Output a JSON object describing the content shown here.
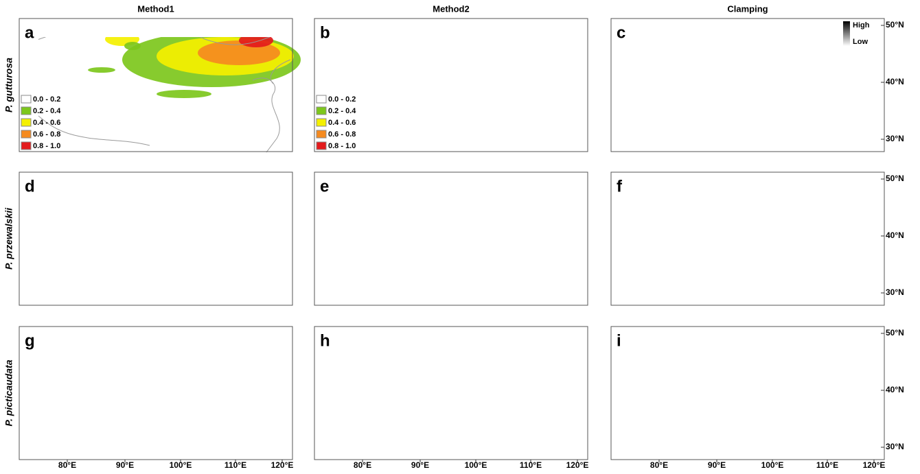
{
  "columns": [
    "Method1",
    "Method2",
    "Clamping"
  ],
  "rows": [
    {
      "label": "P. gutturosa",
      "panels": [
        "a",
        "b",
        "c"
      ]
    },
    {
      "label": "P. przewalskii",
      "panels": [
        "d",
        "e",
        "f"
      ]
    },
    {
      "label": "P. picticaudata",
      "panels": [
        "g",
        "h",
        "i"
      ]
    }
  ],
  "legend": [
    {
      "label": "0.0 - 0.2",
      "color": "#ffffff"
    },
    {
      "label": "0.2 - 0.4",
      "color": "#7dc71c"
    },
    {
      "label": "0.4 - 0.6",
      "color": "#f4f000"
    },
    {
      "label": "0.6 - 0.8",
      "color": "#f58a1f"
    },
    {
      "label": "0.8 - 1.0",
      "color": "#e31a1c"
    }
  ],
  "clamping_legend": {
    "high": "High",
    "low": "Low"
  },
  "longitude_ticks": [
    "80°E",
    "90°E",
    "100°E",
    "110°E",
    "120°E"
  ],
  "latitude_ticks": [
    "50°N",
    "40°N",
    "30°N"
  ]
}
